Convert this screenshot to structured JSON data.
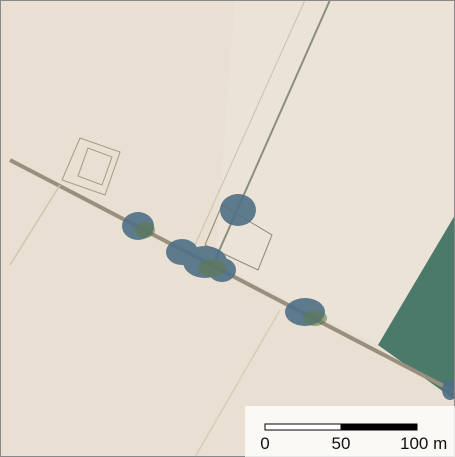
{
  "scale_bar": {
    "labels": [
      "0",
      "50",
      "100 m"
    ]
  }
}
